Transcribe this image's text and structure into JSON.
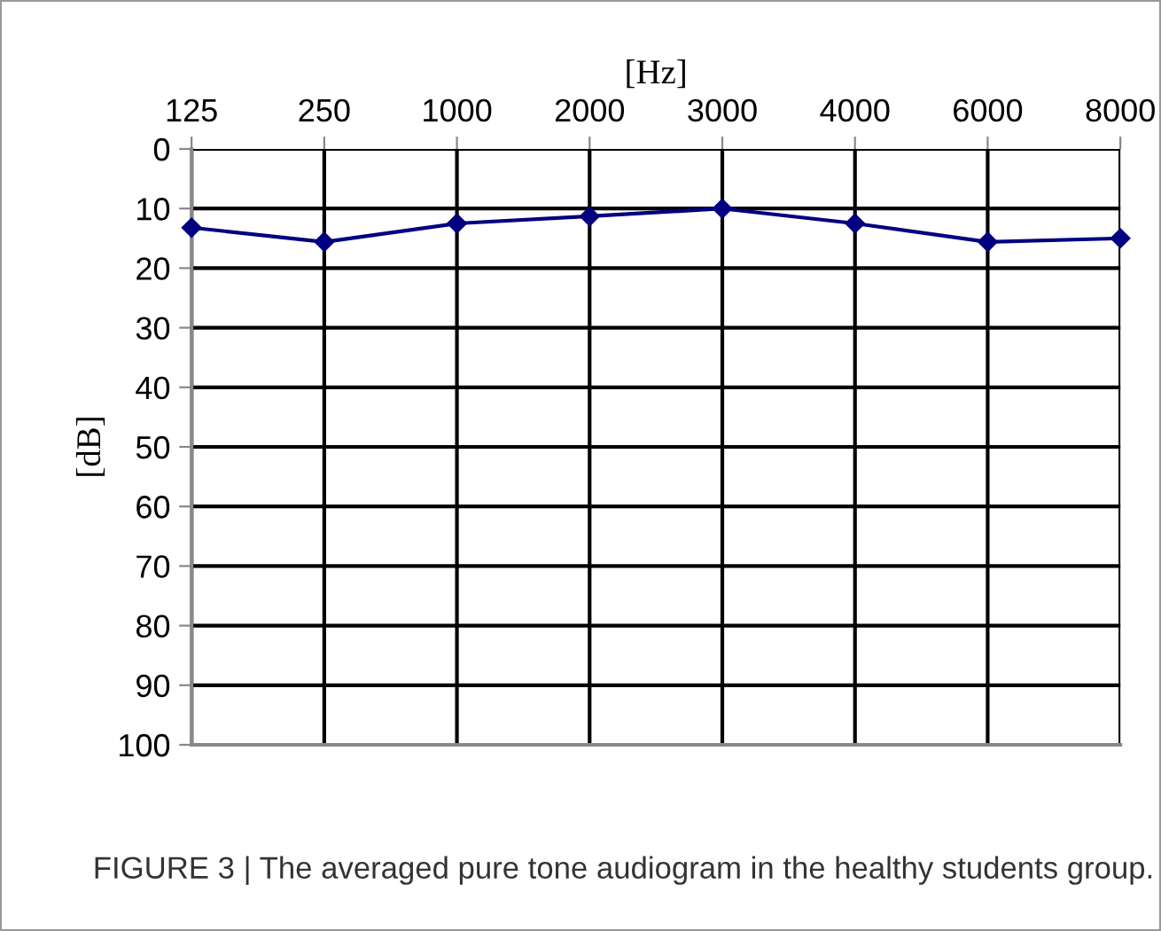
{
  "chart_data": {
    "type": "line",
    "xlabel": "[Hz]",
    "ylabel": "[dB]",
    "categories": [
      "125",
      "250",
      "1000",
      "2000",
      "3000",
      "4000",
      "6000",
      "8000"
    ],
    "series": [
      {
        "color": "#000080",
        "values": [
          13.2,
          15.6,
          12.5,
          11.3,
          10,
          12.5,
          15.6,
          15.0
        ]
      }
    ],
    "ylim": [
      100,
      0
    ],
    "yticks": [
      0,
      10,
      20,
      30,
      40,
      50,
      60,
      70,
      80,
      90,
      100
    ],
    "grid": true,
    "marker": "diamond",
    "line_style": "solid",
    "annotations": [
      "FIGURE 3 | The averaged pure tone audiogram in the healthy students group."
    ]
  }
}
